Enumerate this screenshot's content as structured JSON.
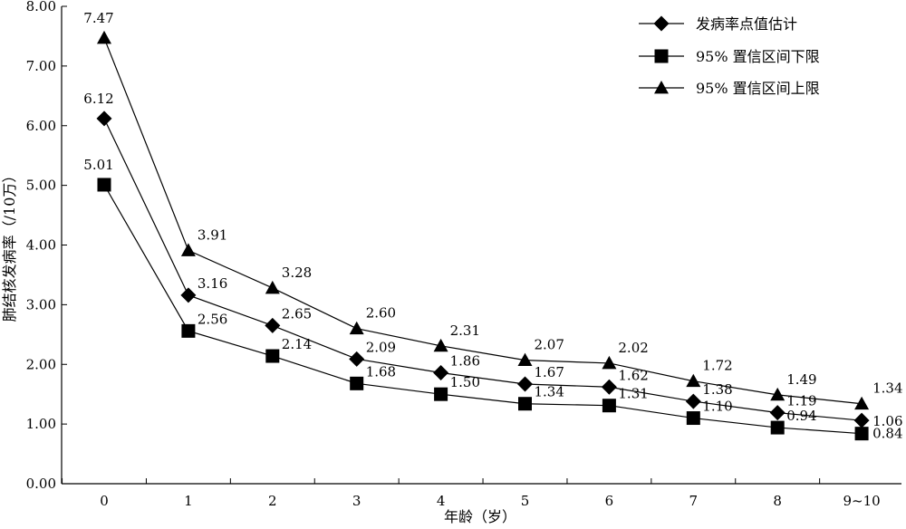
{
  "chart_data": {
    "type": "line",
    "title": "",
    "xlabel": "年龄（岁）",
    "ylabel": "肺结核发病率（/10万）",
    "categories": [
      "0",
      "1",
      "2",
      "3",
      "4",
      "5",
      "6",
      "7",
      "8",
      "9~10"
    ],
    "ylim": [
      0,
      8
    ],
    "yticks": [
      "0.00",
      "1.00",
      "2.00",
      "3.00",
      "4.00",
      "5.00",
      "6.00",
      "7.00",
      "8.00"
    ],
    "grid": false,
    "legend_position": "top-right",
    "series": [
      {
        "name": "发病率点值估计",
        "marker": "diamond",
        "values": [
          6.12,
          3.16,
          2.65,
          2.09,
          1.86,
          1.67,
          1.62,
          1.38,
          1.19,
          1.06
        ],
        "labels": [
          "6.12",
          "3.16",
          "2.65",
          "2.09",
          "1.86",
          "1.67",
          "1.62",
          "1.38",
          "1.19",
          "1.06"
        ]
      },
      {
        "name": "95% 置信区间下限",
        "marker": "square",
        "values": [
          5.01,
          2.56,
          2.14,
          1.68,
          1.5,
          1.34,
          1.31,
          1.1,
          0.94,
          0.84
        ],
        "labels": [
          "5.01",
          "2.56",
          "2.14",
          "1.68",
          "1.50",
          "1.34",
          "1.31",
          "1.10",
          "0.94",
          "0.84"
        ]
      },
      {
        "name": "95% 置信区间上限",
        "marker": "triangle",
        "values": [
          7.47,
          3.91,
          3.28,
          2.6,
          2.31,
          2.07,
          2.02,
          1.72,
          1.49,
          1.34
        ],
        "labels": [
          "7.47",
          "3.91",
          "3.28",
          "2.60",
          "2.31",
          "2.07",
          "2.02",
          "1.72",
          "1.49",
          "1.34"
        ]
      }
    ]
  }
}
